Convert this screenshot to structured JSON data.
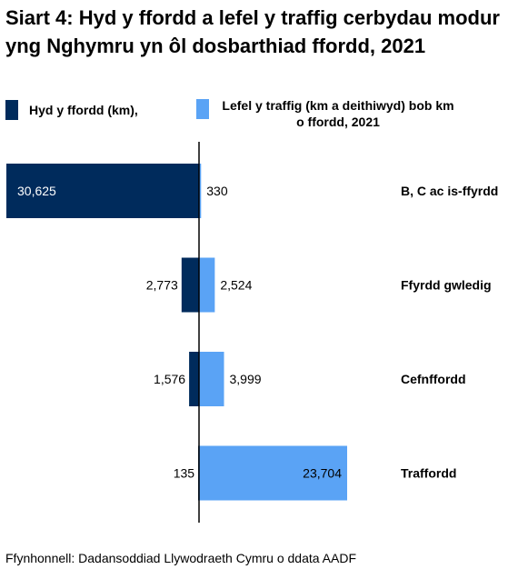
{
  "title": "Siart 4: Hyd y ffordd a lefel y traffig cerbydau modur yng Nghymru yn ôl dosbarthiad ffordd, 2021",
  "source": "Ffynhonnell: Dadansoddiad Llywodraeth Cymru o ddata AADF",
  "colors": {
    "road_length": "#002b5c",
    "traffic": "#5aa3f5",
    "axis": "#000000",
    "label_light": "#ffffff"
  },
  "chart_data": {
    "type": "bar",
    "orientation": "horizontal-diverging",
    "categories": [
      "B, C ac is-ffyrdd",
      "Ffyrdd gwledig",
      "Cefnffordd",
      "Traffordd"
    ],
    "series": [
      {
        "name": "Hyd y ffordd (km),",
        "values": [
          30625,
          2773,
          1576,
          135
        ],
        "labels": [
          "30,625",
          "2,773",
          "1,576",
          "135"
        ],
        "direction": "left"
      },
      {
        "name": "Lefel y traffig (km a deithiwyd) bob km o ffordd, 2021",
        "values": [
          330,
          2524,
          3999,
          23704
        ],
        "labels": [
          "330",
          "2,524",
          "3,999",
          "23,704"
        ],
        "direction": "right"
      }
    ],
    "legend_position": "top",
    "grid": false
  }
}
